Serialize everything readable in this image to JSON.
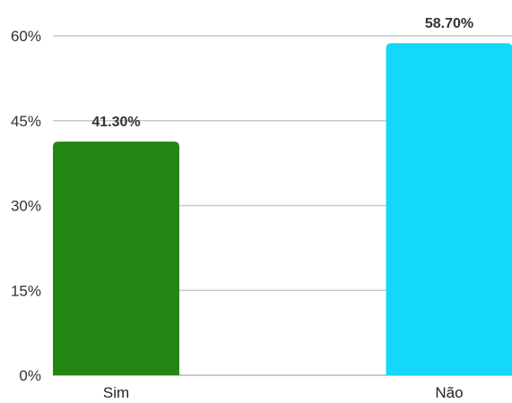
{
  "chart_data": {
    "type": "bar",
    "categories": [
      "Sim",
      "Não"
    ],
    "values": [
      41.3,
      58.7
    ],
    "data_labels": [
      "41.30%",
      "58.70%"
    ],
    "colors": [
      "#248612",
      "#13d8fa"
    ],
    "y_ticks": [
      "0%",
      "15%",
      "30%",
      "45%",
      "60%"
    ],
    "y_tick_values": [
      0,
      15,
      30,
      45,
      60
    ],
    "ylim": [
      0,
      60
    ],
    "grid": true,
    "legend": "none"
  }
}
